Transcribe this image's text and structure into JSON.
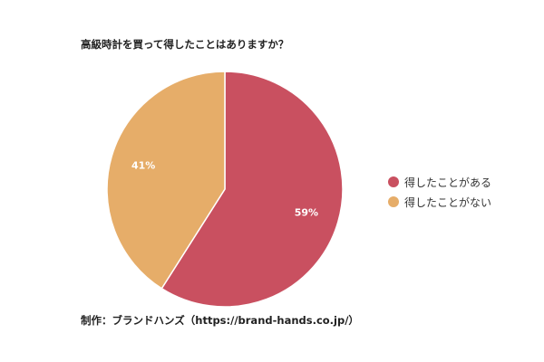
{
  "chart_data": {
    "type": "pie",
    "title": "高級時計を買って得したことはありますか？",
    "categories": [
      "得したことがある",
      "得したことがない"
    ],
    "values": [
      59,
      41
    ],
    "value_labels": [
      "59%",
      "41%"
    ],
    "colors": [
      "#c95060",
      "#e6ad69"
    ],
    "legend_position": "right",
    "start_angle_deg": 0,
    "direction": "clockwise"
  },
  "footer": {
    "credit": "制作：ブランドハンズ（https://brand-hands.co.jp/）"
  }
}
